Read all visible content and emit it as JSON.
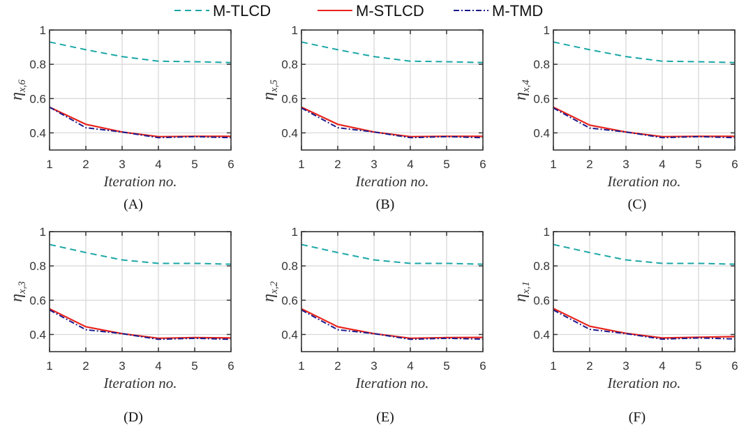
{
  "chart_data": {
    "type": "line",
    "legend": {
      "placement": "top-center",
      "entries": [
        "M-TLCD",
        "M-STLCD",
        "M-TMD"
      ]
    },
    "series_styles": [
      {
        "name": "M-TLCD",
        "color": "#1aa6a6",
        "dash": "dashed"
      },
      {
        "name": "M-STLCD",
        "color": "#e8231b",
        "dash": "solid"
      },
      {
        "name": "M-TMD",
        "color": "#1c1a8c",
        "dash": "dash-dot"
      }
    ],
    "subplots": [
      {
        "panel": "(A)",
        "ylabel_main": "η",
        "ylabel_sub": "x,6",
        "xlabel": "Iteration no.",
        "x": [
          1,
          2,
          3,
          4,
          5,
          6
        ],
        "xlim": [
          1,
          6
        ],
        "ylim": [
          0.3,
          1
        ],
        "yticks": [
          "1",
          "0.8",
          "0.6",
          "0.4"
        ],
        "xticks": [
          "1",
          "2",
          "3",
          "4",
          "5",
          "6"
        ],
        "series": [
          {
            "name": "M-TLCD",
            "values": [
              0.93,
              0.885,
              0.845,
              0.818,
              0.815,
              0.81
            ]
          },
          {
            "name": "M-STLCD",
            "values": [
              0.55,
              0.45,
              0.405,
              0.378,
              0.38,
              0.38
            ]
          },
          {
            "name": "M-TMD",
            "values": [
              0.55,
              0.43,
              0.405,
              0.372,
              0.378,
              0.372
            ]
          }
        ]
      },
      {
        "panel": "(B)",
        "ylabel_main": "η",
        "ylabel_sub": "x,5",
        "xlabel": "Iteration no.",
        "x": [
          1,
          2,
          3,
          4,
          5,
          6
        ],
        "xlim": [
          1,
          6
        ],
        "ylim": [
          0.3,
          1
        ],
        "yticks": [
          "1",
          "0.8",
          "0.6",
          "0.4"
        ],
        "xticks": [
          "1",
          "2",
          "3",
          "4",
          "5",
          "6"
        ],
        "series": [
          {
            "name": "M-TLCD",
            "values": [
              0.93,
              0.885,
              0.845,
              0.818,
              0.815,
              0.81
            ]
          },
          {
            "name": "M-STLCD",
            "values": [
              0.55,
              0.45,
              0.405,
              0.378,
              0.38,
              0.38
            ]
          },
          {
            "name": "M-TMD",
            "values": [
              0.545,
              0.43,
              0.405,
              0.372,
              0.378,
              0.372
            ]
          }
        ]
      },
      {
        "panel": "(C)",
        "ylabel_main": "η",
        "ylabel_sub": "x,4",
        "xlabel": "Iteration no.",
        "x": [
          1,
          2,
          3,
          4,
          5,
          6
        ],
        "xlim": [
          1,
          6
        ],
        "ylim": [
          0.3,
          1
        ],
        "yticks": [
          "1",
          "0.8",
          "0.6",
          "0.4"
        ],
        "xticks": [
          "1",
          "2",
          "3",
          "4",
          "5",
          "6"
        ],
        "series": [
          {
            "name": "M-TLCD",
            "values": [
              0.93,
              0.885,
              0.845,
              0.818,
              0.815,
              0.81
            ]
          },
          {
            "name": "M-STLCD",
            "values": [
              0.55,
              0.445,
              0.405,
              0.378,
              0.38,
              0.38
            ]
          },
          {
            "name": "M-TMD",
            "values": [
              0.545,
              0.428,
              0.405,
              0.372,
              0.378,
              0.372
            ]
          }
        ]
      },
      {
        "panel": "(D)",
        "ylabel_main": "η",
        "ylabel_sub": "x,3",
        "xlabel": "Iteration no.",
        "x": [
          1,
          2,
          3,
          4,
          5,
          6
        ],
        "xlim": [
          1,
          6
        ],
        "ylim": [
          0.3,
          1
        ],
        "yticks": [
          "1",
          "0.8",
          "0.6",
          "0.4"
        ],
        "xticks": [
          "1",
          "2",
          "3",
          "4",
          "5",
          "6"
        ],
        "series": [
          {
            "name": "M-TLCD",
            "values": [
              0.925,
              0.878,
              0.835,
              0.815,
              0.815,
              0.81
            ]
          },
          {
            "name": "M-STLCD",
            "values": [
              0.55,
              0.445,
              0.405,
              0.378,
              0.382,
              0.38
            ]
          },
          {
            "name": "M-TMD",
            "values": [
              0.543,
              0.428,
              0.405,
              0.372,
              0.378,
              0.372
            ]
          }
        ]
      },
      {
        "panel": "(E)",
        "ylabel_main": "η",
        "ylabel_sub": "x,2",
        "xlabel": "Iteration no.",
        "x": [
          1,
          2,
          3,
          4,
          5,
          6
        ],
        "xlim": [
          1,
          6
        ],
        "ylim": [
          0.3,
          1
        ],
        "yticks": [
          "1",
          "0.8",
          "0.6",
          "0.4"
        ],
        "xticks": [
          "1",
          "2",
          "3",
          "4",
          "5",
          "6"
        ],
        "series": [
          {
            "name": "M-TLCD",
            "values": [
              0.925,
              0.878,
              0.835,
              0.815,
              0.815,
              0.81
            ]
          },
          {
            "name": "M-STLCD",
            "values": [
              0.55,
              0.445,
              0.405,
              0.378,
              0.382,
              0.383
            ]
          },
          {
            "name": "M-TMD",
            "values": [
              0.543,
              0.428,
              0.405,
              0.372,
              0.378,
              0.373
            ]
          }
        ]
      },
      {
        "panel": "(F)",
        "ylabel_main": "η",
        "ylabel_sub": "x,1",
        "xlabel": "Iteration no.",
        "x": [
          1,
          2,
          3,
          4,
          5,
          6
        ],
        "xlim": [
          1,
          6
        ],
        "ylim": [
          0.3,
          1
        ],
        "yticks": [
          "1",
          "0.8",
          "0.6",
          "0.4"
        ],
        "xticks": [
          "1",
          "2",
          "3",
          "4",
          "5",
          "6"
        ],
        "series": [
          {
            "name": "M-TLCD",
            "values": [
              0.925,
              0.878,
              0.835,
              0.815,
              0.815,
              0.81
            ]
          },
          {
            "name": "M-STLCD",
            "values": [
              0.552,
              0.448,
              0.407,
              0.38,
              0.384,
              0.388
            ]
          },
          {
            "name": "M-TMD",
            "values": [
              0.543,
              0.43,
              0.405,
              0.373,
              0.38,
              0.374
            ]
          }
        ]
      }
    ]
  }
}
